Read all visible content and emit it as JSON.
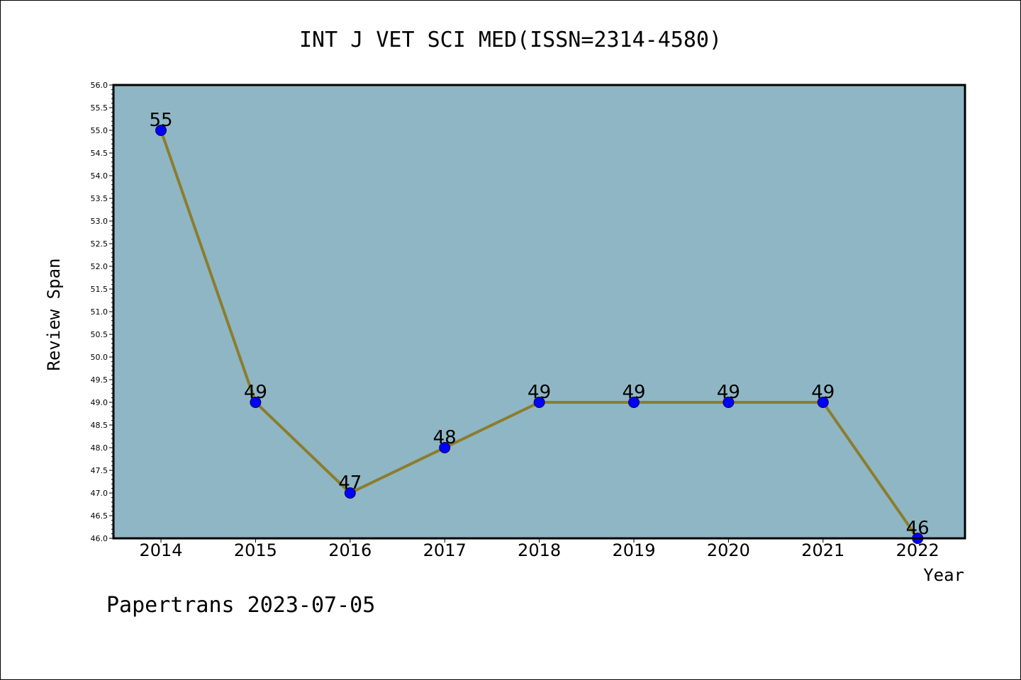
{
  "chart_data": {
    "type": "line",
    "title": "INT J VET SCI MED(ISSN=2314-4580)",
    "xlabel": "Year",
    "ylabel": "Review Span",
    "categories": [
      "2014",
      "2015",
      "2016",
      "2017",
      "2018",
      "2019",
      "2020",
      "2021",
      "2022"
    ],
    "series": [
      {
        "values": [
          55,
          49,
          47,
          48,
          49,
          49,
          49,
          49,
          46
        ]
      }
    ],
    "data_labels": [
      "55",
      "49",
      "47",
      "48",
      "49",
      "49",
      "49",
      "49",
      "46"
    ],
    "ylim": [
      46.0,
      56.0
    ],
    "ytick_step": 0.5,
    "grid": false,
    "colors": {
      "plot_background": "#8fb6c4",
      "line": "#8b7d2e",
      "marker": "#0000ff",
      "axis": "#000000"
    }
  },
  "footer": {
    "note": "Papertrans 2023-07-05"
  }
}
